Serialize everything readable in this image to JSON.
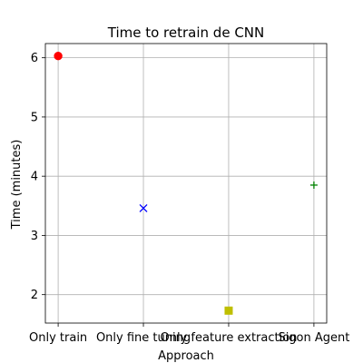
{
  "chart_data": {
    "type": "scatter",
    "title": "Time to retrain de CNN",
    "xlabel": "Approach",
    "ylabel": "Time (minutes)",
    "categories": [
      "Only train",
      "Only fine tuning",
      "Only feature extraction",
      "Sigon Agent"
    ],
    "ylim": [
      1.52,
      6.24
    ],
    "yticks": [
      2,
      3,
      4,
      5,
      6
    ],
    "grid": true,
    "points": [
      {
        "category": "Only train",
        "value": 6.03,
        "marker": "circle",
        "color": "#ff0000"
      },
      {
        "category": "Only fine tuning",
        "value": 3.46,
        "marker": "x",
        "color": "#0000ff"
      },
      {
        "category": "Only feature extraction",
        "value": 1.73,
        "marker": "square",
        "color": "#bfbf00"
      },
      {
        "category": "Sigon Agent",
        "value": 3.85,
        "marker": "plus",
        "color": "#008000"
      }
    ]
  }
}
